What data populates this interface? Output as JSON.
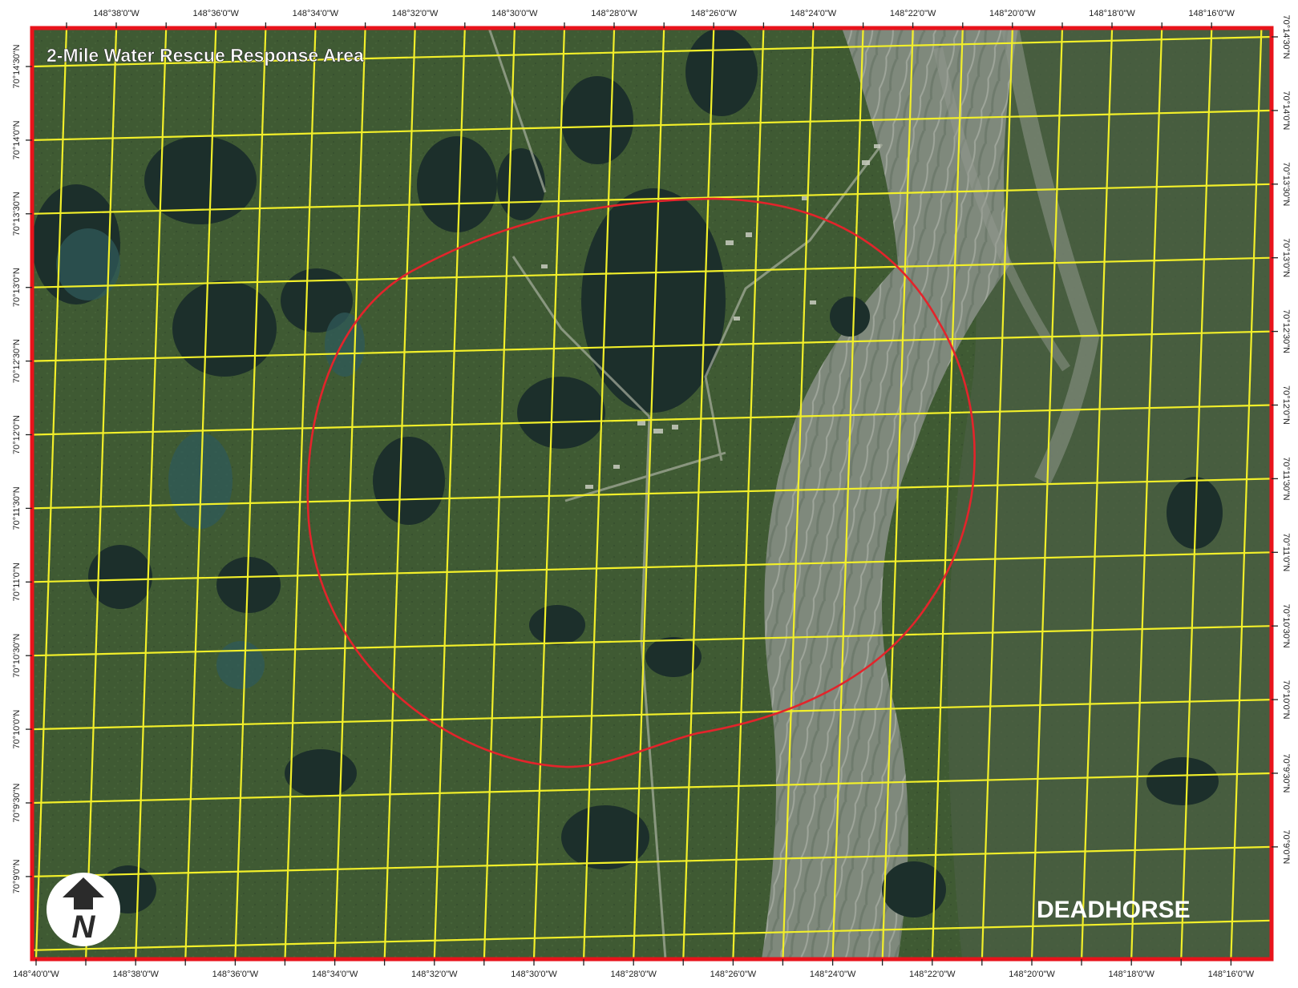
{
  "map": {
    "title": "2-Mile Water Rescue Response Area",
    "place_label": "DEADHORSE",
    "north_arrow_letter": "N",
    "north_arrow_icon": "north-arrow-icon",
    "colors": {
      "frame": "#e8131b",
      "graticule": "#f2ef2a",
      "response_circle": "#e3242b",
      "label_text": "#ffffff",
      "tundra": "#3f5a33",
      "lake": "#1a2e2b",
      "river": "#8a9289"
    },
    "longitude_labels": [
      "148°40'0\"W",
      "148°38'0\"W",
      "148°36'0\"W",
      "148°34'0\"W",
      "148°32'0\"W",
      "148°30'0\"W",
      "148°28'0\"W",
      "148°26'0\"W",
      "148°24'0\"W",
      "148°22'0\"W",
      "148°20'0\"W",
      "148°18'0\"W",
      "148°16'0\"W"
    ],
    "top_longitude_labels": [
      "148°38'0\"W",
      "148°36'0\"W",
      "148°34'0\"W",
      "148°32'0\"W",
      "148°30'0\"W",
      "148°28'0\"W",
      "148°26'0\"W",
      "148°24'0\"W",
      "148°22'0\"W",
      "148°20'0\"W",
      "148°18'0\"W",
      "148°16'0\"W"
    ],
    "left_latitude_labels": [
      "70°14'30\"N",
      "70°14'0\"N",
      "70°13'30\"N",
      "70°13'0\"N",
      "70°12'30\"N",
      "70°12'0\"N",
      "70°11'30\"N",
      "70°11'0\"N",
      "70°10'30\"N",
      "70°10'0\"N",
      "70°9'30\"N",
      "70°9'0\"N"
    ],
    "right_latitude_labels": [
      "70°14'30\"N",
      "70°14'0\"N",
      "70°13'30\"N",
      "70°13'0\"N",
      "70°12'30\"N",
      "70°12'0\"N",
      "70°11'30\"N",
      "70°11'0\"N",
      "70°10'30\"N",
      "70°10'0\"N",
      "70°9'30\"N",
      "70°9'0\"N"
    ]
  }
}
